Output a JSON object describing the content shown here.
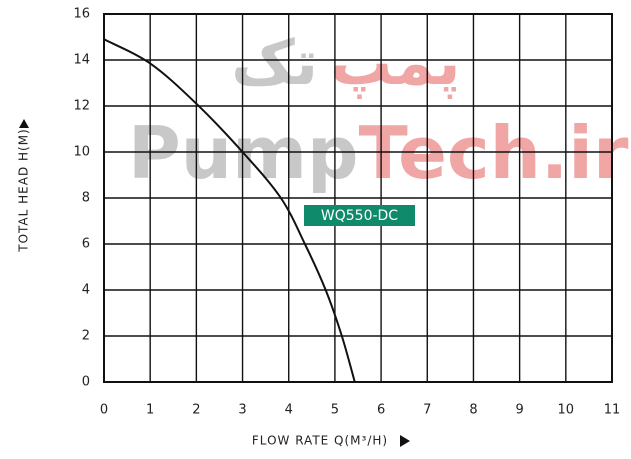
{
  "chart_data": {
    "type": "line",
    "y_label": "TOTAL HEAD H(M)",
    "x_label": "FLOW RATE Q(M³/H)",
    "annotation": "WQ550-DC",
    "watermark": {
      "latin_gray": "Pump",
      "latin_red": "Tech.ir",
      "persian_gray": "تک",
      "persian_red": "پمپ"
    },
    "series": [
      {
        "name": "WQ550-DC",
        "color": "#111111",
        "x": [
          0,
          1,
          2,
          3,
          3.83,
          4.35,
          4.8,
          5.15,
          5.43
        ],
        "values": [
          14.9,
          13.85,
          12.1,
          10,
          8,
          6,
          4,
          2,
          0
        ]
      }
    ],
    "xlim": [
      0,
      11
    ],
    "xticks": [
      0,
      1,
      2,
      3,
      4,
      5,
      6,
      7,
      8,
      9,
      10,
      11
    ],
    "ylim": [
      0,
      16
    ],
    "yticks": [
      0,
      2,
      4,
      6,
      8,
      10,
      12,
      14,
      16
    ],
    "grid": true
  }
}
